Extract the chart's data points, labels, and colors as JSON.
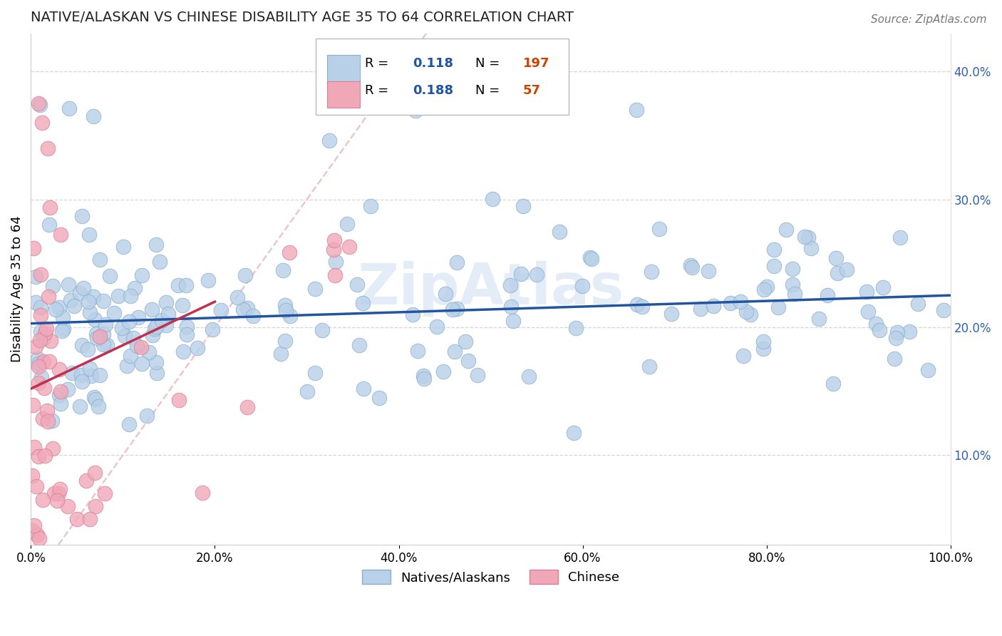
{
  "title": "NATIVE/ALASKAN VS CHINESE DISABILITY AGE 35 TO 64 CORRELATION CHART",
  "source": "Source: ZipAtlas.com",
  "ylabel": "Disability Age 35 to 64",
  "xlim": [
    0.0,
    100.0
  ],
  "ylim": [
    3.0,
    43.0
  ],
  "xticks": [
    0.0,
    20.0,
    40.0,
    60.0,
    80.0,
    100.0
  ],
  "yticks": [
    10.0,
    20.0,
    30.0,
    40.0
  ],
  "ytick_labels": [
    "10.0%",
    "20.0%",
    "30.0%",
    "40.0%"
  ],
  "xtick_labels": [
    "0.0%",
    "20.0%",
    "40.0%",
    "60.0%",
    "80.0%",
    "100.0%"
  ],
  "blue_R": "0.118",
  "blue_N": "197",
  "pink_R": "0.188",
  "pink_N": "57",
  "blue_color": "#b8d0e8",
  "pink_color": "#f0a8b8",
  "blue_edge_color": "#8ab0d0",
  "pink_edge_color": "#d88098",
  "blue_line_color": "#2255a0",
  "pink_line_color": "#c03050",
  "ref_line_color": "#e8c0c8",
  "watermark": "ZipAtlas",
  "legend_label_blue": "Natives/Alaskans",
  "legend_label_pink": "Chinese",
  "blue_trend_x0": 0.0,
  "blue_trend_x1": 100.0,
  "blue_trend_y0": 20.3,
  "blue_trend_y1": 22.5,
  "pink_trend_x0": 0.0,
  "pink_trend_x1": 20.0,
  "pink_trend_y0": 15.2,
  "pink_trend_y1": 22.0,
  "tick_color": "#3060b0",
  "number_color": "#cc4400",
  "R_label_color": "#2255a0"
}
